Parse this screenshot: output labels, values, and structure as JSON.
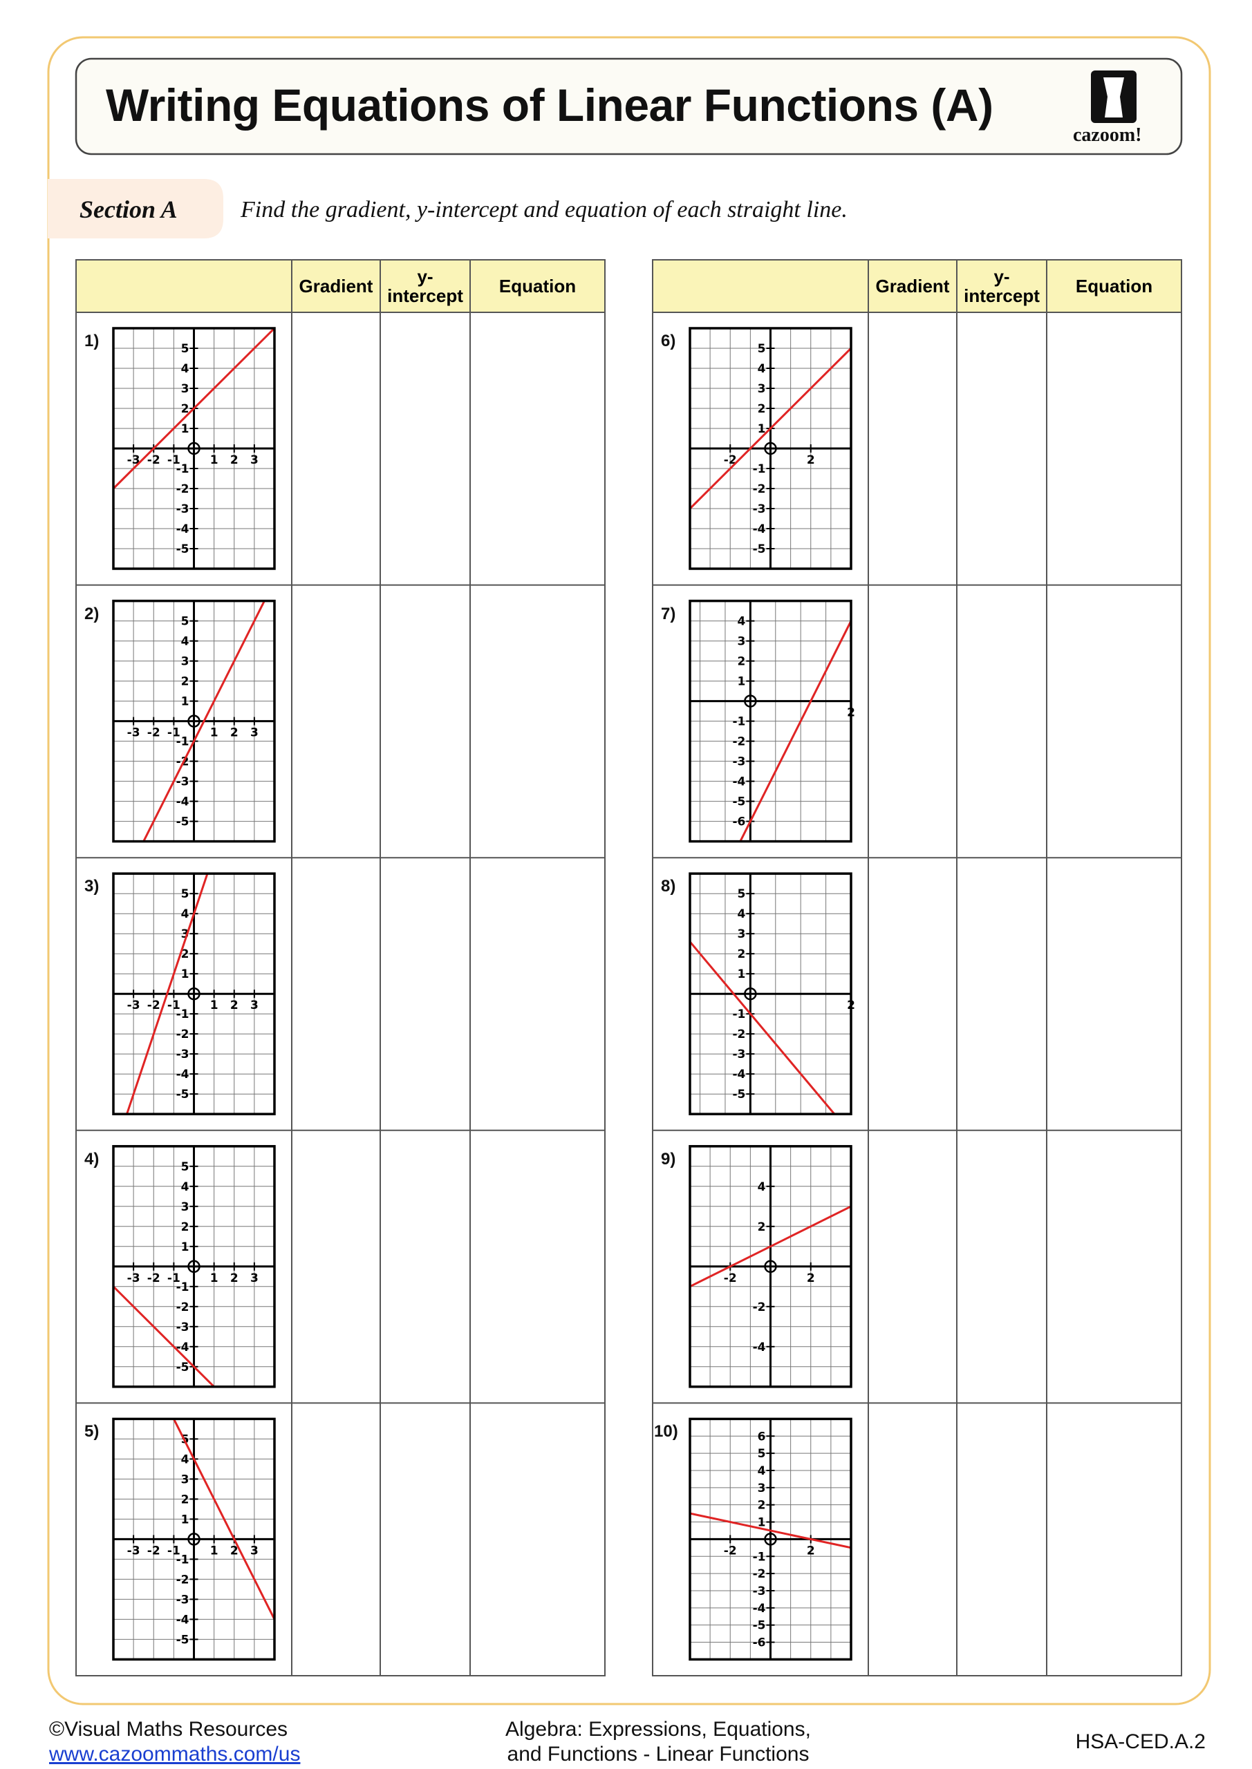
{
  "header": {
    "title": "Writing Equations of Linear Functions (A)",
    "logo": "cazoom!"
  },
  "section": {
    "label": "Section A",
    "instruction": "Find the gradient, y-intercept and equation of each straight line."
  },
  "tables": [
    {
      "headers": [
        "Gradient",
        "y-intercept",
        "Equation"
      ],
      "problems": [
        {
          "number": "1)",
          "xlim": [
            -4,
            4
          ],
          "ylim": [
            -6,
            6
          ],
          "xticks": [
            -3,
            -2,
            -1,
            1,
            2,
            3
          ],
          "yticks": [
            -5,
            -4,
            -3,
            -2,
            -1,
            1,
            2,
            3,
            4,
            5
          ],
          "line": {
            "x": [
              -4,
              4
            ],
            "y": [
              -2,
              6
            ]
          }
        },
        {
          "number": "2)",
          "xlim": [
            -4,
            4
          ],
          "ylim": [
            -6,
            6
          ],
          "xticks": [
            -3,
            -2,
            -1,
            1,
            2,
            3
          ],
          "yticks": [
            -5,
            -4,
            -3,
            -2,
            -1,
            1,
            2,
            3,
            4,
            5
          ],
          "line": {
            "x": [
              -2.5,
              3.5
            ],
            "y": [
              -6,
              6
            ]
          }
        },
        {
          "number": "3)",
          "xlim": [
            -4,
            4
          ],
          "ylim": [
            -6,
            6
          ],
          "xticks": [
            -3,
            -2,
            -1,
            1,
            2,
            3
          ],
          "yticks": [
            -5,
            -4,
            -3,
            -2,
            -1,
            1,
            2,
            3,
            4,
            5
          ],
          "line": {
            "x": [
              -3.33,
              0.67
            ],
            "y": [
              -6,
              6
            ]
          }
        },
        {
          "number": "4)",
          "xlim": [
            -4,
            4
          ],
          "ylim": [
            -6,
            6
          ],
          "xticks": [
            -3,
            -2,
            -1,
            1,
            2,
            3
          ],
          "yticks": [
            -5,
            -4,
            -3,
            -2,
            -1,
            1,
            2,
            3,
            4,
            5
          ],
          "line": {
            "x": [
              -4,
              1
            ],
            "y": [
              -1,
              -6
            ]
          }
        },
        {
          "number": "5)",
          "xlim": [
            -4,
            4
          ],
          "ylim": [
            -6,
            6
          ],
          "xticks": [
            -3,
            -2,
            -1,
            1,
            2,
            3
          ],
          "yticks": [
            -5,
            -4,
            -3,
            -2,
            -1,
            1,
            2,
            3,
            4,
            5
          ],
          "line": {
            "x": [
              -1,
              4
            ],
            "y": [
              6,
              -4
            ]
          }
        }
      ]
    },
    {
      "headers": [
        "Gradient",
        "y-intercept",
        "Equation"
      ],
      "problems": [
        {
          "number": "6)",
          "xlim": [
            -4,
            4
          ],
          "ylim": [
            -6,
            6
          ],
          "xticks": [
            -2,
            2
          ],
          "yticks": [
            -5,
            -4,
            -3,
            -2,
            -1,
            1,
            2,
            3,
            4,
            5
          ],
          "line": {
            "x": [
              -4,
              4
            ],
            "y": [
              -3,
              5
            ]
          }
        },
        {
          "number": "7)",
          "xlim": [
            -1.2,
            2
          ],
          "ylim": [
            -7,
            5
          ],
          "xticks": [
            2
          ],
          "yticks": [
            -6,
            -5,
            -4,
            -3,
            -2,
            -1,
            1,
            2,
            3,
            4
          ],
          "line": {
            "x": [
              -0.2,
              2
            ],
            "y": [
              -7,
              4
            ]
          }
        },
        {
          "number": "8)",
          "xlim": [
            -1.2,
            2
          ],
          "ylim": [
            -6,
            6
          ],
          "xticks": [
            2
          ],
          "yticks": [
            -5,
            -4,
            -3,
            -2,
            -1,
            1,
            2,
            3,
            4,
            5
          ],
          "line": {
            "x": [
              -1.2,
              1.67
            ],
            "y": [
              2.6,
              -6
            ]
          }
        },
        {
          "number": "9)",
          "xlim": [
            -4,
            4
          ],
          "ylim": [
            -6,
            6
          ],
          "xticks": [
            -2,
            2
          ],
          "yticks": [
            -4,
            -2,
            2,
            4
          ],
          "line": {
            "x": [
              -4,
              4
            ],
            "y": [
              -1,
              3
            ]
          }
        },
        {
          "number": "10)",
          "xlim": [
            -4,
            4
          ],
          "ylim": [
            -7,
            7
          ],
          "xticks": [
            -2,
            2
          ],
          "yticks": [
            -6,
            -5,
            -4,
            -3,
            -2,
            -1,
            1,
            2,
            3,
            4,
            5,
            6
          ],
          "line": {
            "x": [
              -4,
              4
            ],
            "y": [
              1.5,
              -0.5
            ]
          }
        }
      ]
    }
  ],
  "footer": {
    "left": [
      "©Visual Maths Resources",
      "www.cazoommaths.com/us"
    ],
    "center": [
      "Algebra: Expressions, Equations,",
      "and Functions - Linear Functions"
    ],
    "right": "HSA-CED.A.2"
  }
}
